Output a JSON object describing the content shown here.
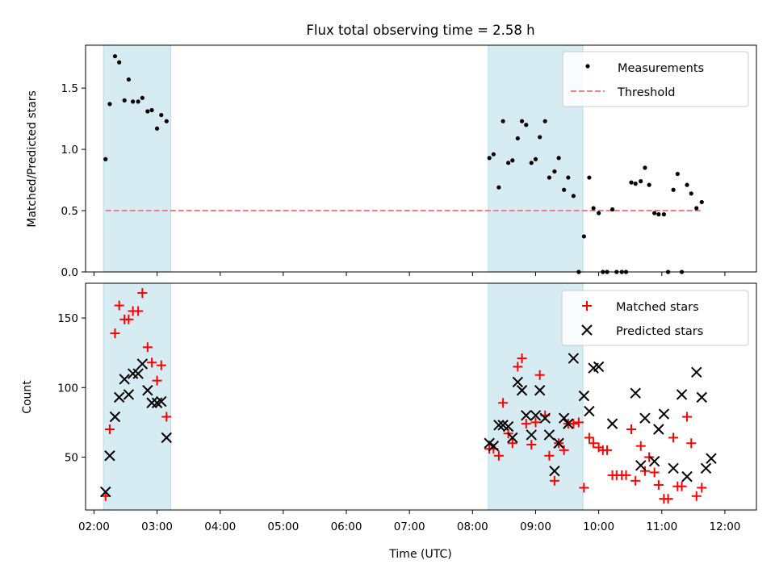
{
  "chart_data": [
    {
      "type": "scatter",
      "title": "Flux total observing time = 2.58 h",
      "xlabel": "",
      "ylabel": "Matched/Predicted stars",
      "xlim": [
        "01:52",
        "12:30"
      ],
      "ylim": [
        0,
        1.85
      ],
      "yticks": [
        "0.0",
        "0.5",
        "1.0",
        "1.5"
      ],
      "ytick_values": [
        0,
        0.5,
        1.0,
        1.5
      ],
      "grid": false,
      "legend_position": "upper right",
      "shaded_intervals": [
        [
          "02:09",
          "03:13"
        ],
        [
          "08:15",
          "09:45"
        ]
      ],
      "series": [
        {
          "name": "Measurements",
          "kind": "points",
          "color": "#000000",
          "points": [
            [
              "02:11",
              0.92
            ],
            [
              "02:15",
              1.37
            ],
            [
              "02:20",
              1.76
            ],
            [
              "02:24",
              1.71
            ],
            [
              "02:29",
              1.4
            ],
            [
              "02:33",
              1.57
            ],
            [
              "02:37",
              1.39
            ],
            [
              "02:42",
              1.39
            ],
            [
              "02:46",
              1.42
            ],
            [
              "02:51",
              1.31
            ],
            [
              "02:55",
              1.32
            ],
            [
              "03:00",
              1.17
            ],
            [
              "03:04",
              1.28
            ],
            [
              "03:09",
              1.23
            ],
            [
              "08:16",
              0.93
            ],
            [
              "08:20",
              0.96
            ],
            [
              "08:25",
              0.69
            ],
            [
              "08:29",
              1.23
            ],
            [
              "08:34",
              0.89
            ],
            [
              "08:38",
              0.91
            ],
            [
              "08:43",
              1.09
            ],
            [
              "08:47",
              1.23
            ],
            [
              "08:51",
              1.2
            ],
            [
              "08:56",
              0.89
            ],
            [
              "09:00",
              0.92
            ],
            [
              "09:04",
              1.1
            ],
            [
              "09:09",
              1.23
            ],
            [
              "09:13",
              0.77
            ],
            [
              "09:18",
              0.82
            ],
            [
              "09:22",
              0.93
            ],
            [
              "09:27",
              0.67
            ],
            [
              "09:31",
              0.77
            ],
            [
              "09:36",
              0.62
            ],
            [
              "09:41",
              0.0
            ],
            [
              "09:46",
              0.29
            ],
            [
              "09:51",
              0.77
            ],
            [
              "09:55",
              0.52
            ],
            [
              "10:00",
              0.48
            ],
            [
              "10:04",
              0.0
            ],
            [
              "10:08",
              0.0
            ],
            [
              "10:13",
              0.51
            ],
            [
              "10:17",
              0.0
            ],
            [
              "10:22",
              0.0
            ],
            [
              "10:26",
              0.0
            ],
            [
              "10:31",
              0.73
            ],
            [
              "10:35",
              0.72
            ],
            [
              "10:40",
              0.74
            ],
            [
              "10:44",
              0.85
            ],
            [
              "10:48",
              0.71
            ],
            [
              "10:53",
              0.48
            ],
            [
              "10:57",
              0.47
            ],
            [
              "11:02",
              0.47
            ],
            [
              "11:06",
              0.0
            ],
            [
              "11:11",
              0.67
            ],
            [
              "11:15",
              0.8
            ],
            [
              "11:19",
              0.0
            ],
            [
              "11:24",
              0.71
            ],
            [
              "11:28",
              0.64
            ],
            [
              "11:33",
              0.52
            ],
            [
              "11:38",
              0.57
            ]
          ]
        },
        {
          "name": "Threshold",
          "kind": "dashed-line",
          "color": "#f08080",
          "y": 0.5,
          "x_range": [
            "02:11",
            "11:38"
          ]
        }
      ]
    },
    {
      "type": "scatter",
      "title": "",
      "xlabel": "Time (UTC)",
      "ylabel": "Count",
      "xlim": [
        "01:52",
        "12:30"
      ],
      "ylim": [
        12,
        175
      ],
      "yticks": [
        "50",
        "100",
        "150"
      ],
      "ytick_values": [
        50,
        100,
        150
      ],
      "xticks": [
        "02:00",
        "03:00",
        "04:00",
        "05:00",
        "06:00",
        "07:00",
        "08:00",
        "09:00",
        "10:00",
        "11:00",
        "12:00"
      ],
      "grid": false,
      "legend_position": "upper right",
      "shaded_intervals": [
        [
          "02:09",
          "03:13"
        ],
        [
          "08:15",
          "09:45"
        ]
      ],
      "series": [
        {
          "name": "Matched stars",
          "marker": "plus",
          "color": "#ff0000",
          "points": [
            [
              "02:11",
              22
            ],
            [
              "02:15",
              70
            ],
            [
              "02:20",
              139
            ],
            [
              "02:24",
              159
            ],
            [
              "02:29",
              149
            ],
            [
              "02:33",
              149
            ],
            [
              "02:37",
              155
            ],
            [
              "02:42",
              155
            ],
            [
              "02:46",
              168
            ],
            [
              "02:51",
              129
            ],
            [
              "02:55",
              118
            ],
            [
              "03:00",
              105
            ],
            [
              "03:04",
              116
            ],
            [
              "03:09",
              79
            ],
            [
              "08:16",
              56
            ],
            [
              "08:20",
              56
            ],
            [
              "08:25",
              51
            ],
            [
              "08:29",
              89
            ],
            [
              "08:34",
              67
            ],
            [
              "08:38",
              60
            ],
            [
              "08:43",
              115
            ],
            [
              "08:47",
              121
            ],
            [
              "08:51",
              74
            ],
            [
              "08:56",
              59
            ],
            [
              "09:00",
              75
            ],
            [
              "09:04",
              109
            ],
            [
              "09:09",
              80
            ],
            [
              "09:13",
              51
            ],
            [
              "09:18",
              33
            ],
            [
              "09:22",
              60
            ],
            [
              "09:27",
              55
            ],
            [
              "09:31",
              74
            ],
            [
              "09:36",
              74
            ],
            [
              "09:41",
              75
            ],
            [
              "09:46",
              28
            ],
            [
              "09:51",
              64
            ],
            [
              "09:55",
              60
            ],
            [
              "10:00",
              57
            ],
            [
              "10:04",
              55
            ],
            [
              "10:08",
              55
            ],
            [
              "10:13",
              37
            ],
            [
              "10:17",
              37
            ],
            [
              "10:22",
              37
            ],
            [
              "10:26",
              37
            ],
            [
              "10:31",
              70
            ],
            [
              "10:35",
              33
            ],
            [
              "10:40",
              58
            ],
            [
              "10:44",
              40
            ],
            [
              "10:48",
              50
            ],
            [
              "10:53",
              39
            ],
            [
              "10:57",
              30
            ],
            [
              "11:02",
              20
            ],
            [
              "11:06",
              20
            ],
            [
              "11:11",
              64
            ],
            [
              "11:15",
              29
            ],
            [
              "11:19",
              29
            ],
            [
              "11:24",
              79
            ],
            [
              "11:28",
              60
            ],
            [
              "11:33",
              22
            ],
            [
              "11:38",
              28
            ]
          ]
        },
        {
          "name": "Predicted stars",
          "marker": "x",
          "color": "#000000",
          "points": [
            [
              "02:11",
              25
            ],
            [
              "02:15",
              51
            ],
            [
              "02:20",
              79
            ],
            [
              "02:24",
              93
            ],
            [
              "02:29",
              106
            ],
            [
              "02:33",
              95
            ],
            [
              "02:37",
              110
            ],
            [
              "02:42",
              110
            ],
            [
              "02:46",
              117
            ],
            [
              "02:51",
              98
            ],
            [
              "02:55",
              89
            ],
            [
              "03:00",
              89
            ],
            [
              "03:04",
              90
            ],
            [
              "03:09",
              64
            ],
            [
              "08:16",
              60
            ],
            [
              "08:20",
              58
            ],
            [
              "08:25",
              73
            ],
            [
              "08:29",
              73
            ],
            [
              "08:34",
              72
            ],
            [
              "08:38",
              64
            ],
            [
              "08:43",
              104
            ],
            [
              "08:47",
              98
            ],
            [
              "08:51",
              80
            ],
            [
              "08:56",
              66
            ],
            [
              "09:00",
              80
            ],
            [
              "09:04",
              98
            ],
            [
              "09:09",
              78
            ],
            [
              "09:13",
              66
            ],
            [
              "09:18",
              40
            ],
            [
              "09:22",
              60
            ],
            [
              "09:27",
              78
            ],
            [
              "09:31",
              74
            ],
            [
              "09:36",
              121
            ],
            [
              "09:46",
              94
            ],
            [
              "09:51",
              83
            ],
            [
              "09:55",
              114
            ],
            [
              "10:00",
              115
            ],
            [
              "10:13",
              74
            ],
            [
              "10:35",
              96
            ],
            [
              "10:40",
              44
            ],
            [
              "10:44",
              78
            ],
            [
              "10:53",
              47
            ],
            [
              "10:57",
              70
            ],
            [
              "11:02",
              81
            ],
            [
              "11:11",
              42
            ],
            [
              "11:19",
              95
            ],
            [
              "11:24",
              36
            ],
            [
              "11:33",
              111
            ],
            [
              "11:38",
              93
            ],
            [
              "11:42",
              42
            ],
            [
              "11:47",
              49
            ]
          ]
        }
      ]
    }
  ]
}
